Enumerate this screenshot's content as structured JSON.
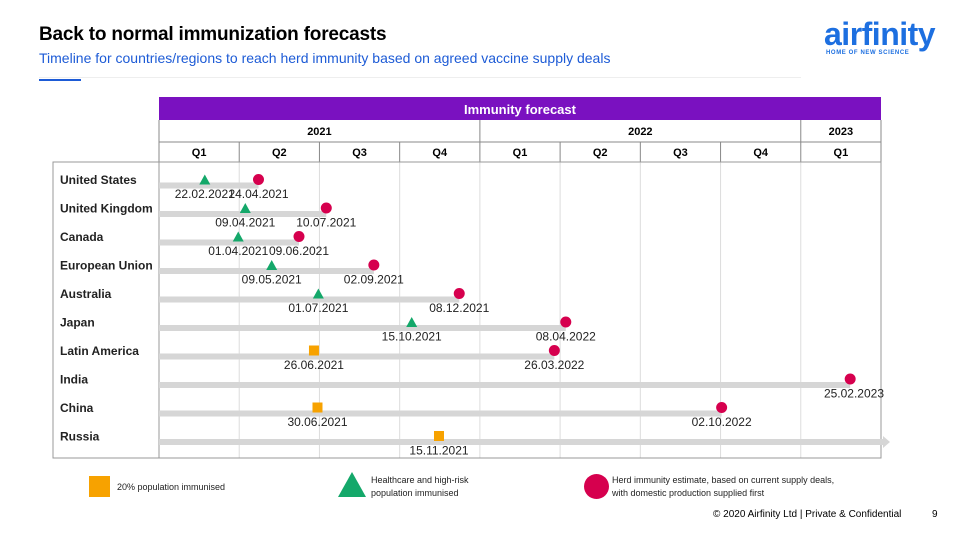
{
  "header": {
    "title": "Back to normal immunization forecasts",
    "subtitle": "Timeline for countries/regions to reach herd immunity based on agreed vaccine supply deals"
  },
  "logo": {
    "word": "airfinity",
    "tagline": "HOME OF NEW SCIENCE"
  },
  "footer": {
    "text": "© 2020 Airfinity Ltd  |  Private & Confidential",
    "page": "9"
  },
  "legend": [
    {
      "marker": "orange-square",
      "text": "20% population immunised"
    },
    {
      "marker": "green-triangle",
      "text": "Healthcare and high-risk population immunised"
    },
    {
      "marker": "red-circle",
      "text": "Herd immunity estimate, based on current supply deals, with domestic production supplied first"
    }
  ],
  "colors": {
    "header_band": "#7a11c0",
    "bar": "#d6d6d6",
    "triangle": "#14a86a",
    "circle": "#d6004e",
    "square": "#f7a200",
    "accent": "#1d5bd6"
  },
  "chart_data": {
    "type": "timeline",
    "title": "Immunity forecast",
    "years": [
      {
        "label": "2021",
        "quarters": 4
      },
      {
        "label": "2022",
        "quarters": 4
      },
      {
        "label": "2023",
        "quarters": 1
      }
    ],
    "quarters": [
      "Q1",
      "Q2",
      "Q3",
      "Q4",
      "Q1",
      "Q2",
      "Q3",
      "Q4",
      "Q1"
    ],
    "start": "2021-01-01",
    "end": "2023-04-01",
    "rows": [
      {
        "country": "United States",
        "triangle": "22.02.2021",
        "circle": "24.04.2021"
      },
      {
        "country": "United Kingdom",
        "triangle": "09.04.2021",
        "circle": "10.07.2021"
      },
      {
        "country": "Canada",
        "triangle": "01.04.2021",
        "circle": "09.06.2021"
      },
      {
        "country": "European Union",
        "triangle": "09.05.2021",
        "circle": "02.09.2021"
      },
      {
        "country": "Australia",
        "triangle": "01.07.2021",
        "circle": "08.12.2021"
      },
      {
        "country": "Japan",
        "triangle": "15.10.2021",
        "circle": "08.04.2022"
      },
      {
        "country": "Latin America",
        "square": "26.06.2021",
        "circle": "26.03.2022"
      },
      {
        "country": "India",
        "circle": "25.02.2023"
      },
      {
        "country": "China",
        "square": "30.06.2021",
        "circle": "02.10.2022"
      },
      {
        "country": "Russia",
        "square": "15.11.2021",
        "open_ended": true
      }
    ]
  }
}
